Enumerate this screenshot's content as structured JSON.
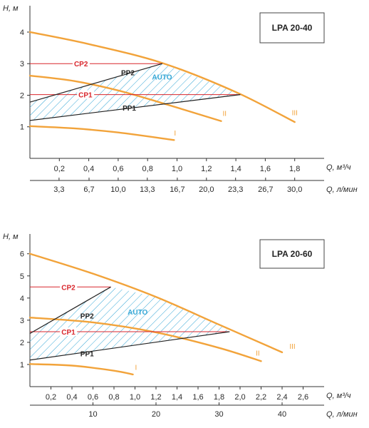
{
  "chart_data": [
    {
      "type": "line",
      "model": "LPA 20-40",
      "y_axis_label": "H, м",
      "x_axis_label_1": "Q, м³/ч",
      "x_axis_label_2": "Q, л/мин",
      "y_ticks": [
        "1",
        "2",
        "3",
        "4"
      ],
      "x_ticks_1": [
        "0,2",
        "0,4",
        "0,6",
        "0,8",
        "1,0",
        "1,2",
        "1,4",
        "1,6",
        "1,8"
      ],
      "x_ticks_2": [
        "3,3",
        "6,7",
        "10,0",
        "13,3",
        "16,7",
        "20,0",
        "23,3",
        "26,7",
        "30,0"
      ],
      "xlim": [
        0,
        2.0
      ],
      "ylim": [
        0,
        4.7
      ],
      "colors": {
        "curves": "#f2a33a",
        "auto": "#35a7d6",
        "cp": "#d9262c",
        "pp": "#222222",
        "axes": "#333333"
      },
      "curves": [
        {
          "name": "I",
          "x": [
            0,
            0.3,
            0.6,
            0.98
          ],
          "y": [
            1.02,
            0.95,
            0.82,
            0.58
          ]
        },
        {
          "name": "II",
          "x": [
            0,
            0.3,
            0.6,
            0.9,
            1.3
          ],
          "y": [
            2.62,
            2.45,
            2.15,
            1.75,
            1.18
          ]
        },
        {
          "name": "III",
          "x": [
            0,
            0.4,
            0.9,
            1.4,
            1.8
          ],
          "y": [
            4.0,
            3.62,
            3.02,
            2.1,
            1.15
          ]
        }
      ],
      "control_lines": [
        {
          "name": "CP2",
          "x": [
            0,
            0.9
          ],
          "y": [
            3.0,
            3.0
          ],
          "label_pos": [
            0.3,
            3.0
          ]
        },
        {
          "name": "CP1",
          "x": [
            0,
            1.43
          ],
          "y": [
            2.02,
            2.02
          ],
          "label_pos": [
            0.33,
            2.02
          ]
        },
        {
          "name": "PP2",
          "x": [
            0,
            0.9
          ],
          "y": [
            1.78,
            3.0
          ],
          "label_pos": [
            0.62,
            2.72
          ]
        },
        {
          "name": "PP1",
          "x": [
            0,
            1.43
          ],
          "y": [
            1.2,
            2.02
          ],
          "label_pos": [
            0.63,
            1.6
          ]
        }
      ],
      "auto_area": {
        "label": "AUTO",
        "label_pos": [
          0.83,
          2.5
        ]
      },
      "curve_label_pos": {
        "I": [
          0.98,
          0.72
        ],
        "II": [
          1.31,
          1.35
        ],
        "III": [
          1.78,
          1.37
        ]
      }
    },
    {
      "type": "line",
      "model": "LPA 20-60",
      "y_axis_label": "H, м",
      "x_axis_label_1": "Q, м³/ч",
      "x_axis_label_2": "Q, л/мин",
      "y_ticks": [
        "1",
        "2",
        "3",
        "4",
        "5",
        "6"
      ],
      "x_ticks_1": [
        "0,2",
        "0,4",
        "0,6",
        "0,8",
        "1,0",
        "1,2",
        "1,4",
        "1,6",
        "1,8",
        "2,0",
        "2,2",
        "2,4",
        "2,6"
      ],
      "x_ticks_2": [
        "10",
        "20",
        "30",
        "40"
      ],
      "xlim": [
        0,
        2.8
      ],
      "ylim": [
        0,
        6.7
      ],
      "colors": {
        "curves": "#f2a33a",
        "auto": "#35a7d6",
        "cp": "#d9262c",
        "pp": "#222222",
        "axes": "#333333"
      },
      "curves": [
        {
          "name": "I",
          "x": [
            0,
            0.4,
            0.8,
            0.98
          ],
          "y": [
            1.02,
            0.95,
            0.72,
            0.55
          ]
        },
        {
          "name": "II",
          "x": [
            0,
            0.6,
            1.2,
            1.8,
            2.2
          ],
          "y": [
            3.12,
            2.9,
            2.45,
            1.75,
            1.15
          ]
        },
        {
          "name": "III",
          "x": [
            0,
            0.6,
            1.2,
            1.8,
            2.4
          ],
          "y": [
            6.0,
            5.1,
            4.05,
            2.8,
            1.55
          ]
        }
      ],
      "control_lines": [
        {
          "name": "CP2",
          "x": [
            0,
            0.77
          ],
          "y": [
            4.5,
            4.5
          ],
          "label_pos": [
            0.3,
            4.5
          ]
        },
        {
          "name": "CP1",
          "x": [
            0,
            1.9
          ],
          "y": [
            2.48,
            2.48
          ],
          "label_pos": [
            0.3,
            2.48
          ]
        },
        {
          "name": "PP2",
          "x": [
            0,
            0.77
          ],
          "y": [
            2.4,
            4.5
          ],
          "label_pos": [
            0.48,
            3.2
          ]
        },
        {
          "name": "PP1",
          "x": [
            0,
            1.9
          ],
          "y": [
            1.2,
            2.48
          ],
          "label_pos": [
            0.48,
            1.5
          ]
        }
      ],
      "auto_area": {
        "label": "AUTO",
        "label_pos": [
          0.93,
          3.25
        ]
      },
      "curve_label_pos": {
        "I": [
          1.0,
          0.75
        ],
        "II": [
          2.15,
          1.4
        ],
        "III": [
          2.47,
          1.7
        ]
      }
    }
  ]
}
